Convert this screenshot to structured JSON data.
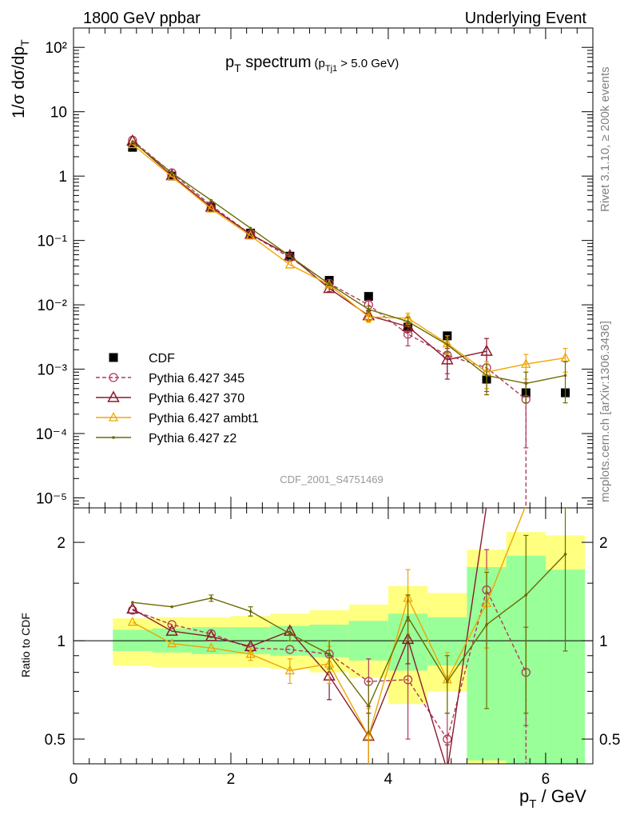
{
  "header": {
    "left": "1800 GeV ppbar",
    "right": "Underlying Event"
  },
  "side_labels": {
    "version": "Rivet 3.1.10, ≥ 200k events",
    "source": "mcplots.cern.ch [arXiv:1306.3436]"
  },
  "chart_data": [
    {
      "type": "scatter",
      "title": "p_T spectrum (p_Tj1 > 5.0 GeV)",
      "title_parts": {
        "main": "p",
        "main_sub": "T",
        "main_rest": " spectrum",
        "cut_open": "(p",
        "cut_sub": "Tj1",
        "cut_rest": " > 5.0 GeV)"
      },
      "watermark": "CDF_2001_S4751469",
      "ylabel": "1/σ dσ/dp_T",
      "yscale": "log",
      "ylim": [
        7e-06,
        200
      ],
      "xlim": [
        0,
        6.6
      ],
      "ytick_labels": [
        "10⁻⁵",
        "10⁻⁴",
        "10⁻³",
        "10⁻²",
        "10⁻¹",
        "1",
        "10",
        "10²"
      ],
      "legend_position": "lower-left",
      "series": [
        {
          "name": "CDF",
          "color": "#000000",
          "marker": "filled-square",
          "x": [
            0.75,
            1.25,
            1.75,
            2.25,
            2.75,
            3.25,
            3.75,
            4.25,
            4.75,
            5.25,
            5.75,
            6.25
          ],
          "y": [
            2.8,
            1.0,
            0.33,
            0.13,
            0.057,
            0.024,
            0.0135,
            0.0045,
            0.0033,
            0.0007,
            0.00043,
            0.00043
          ]
        },
        {
          "name": "Pythia 6.427 345",
          "color": "#b03a5b",
          "marker": "open-circle",
          "dashed": true,
          "x": [
            0.75,
            1.25,
            1.75,
            2.25,
            2.75,
            3.25,
            3.75,
            4.25,
            4.75,
            5.25,
            5.75
          ],
          "y": [
            3.6,
            1.12,
            0.35,
            0.125,
            0.054,
            0.0215,
            0.01,
            0.0035,
            0.00165,
            0.00105,
            0.00034
          ],
          "yerr": [
            0,
            0,
            0,
            0,
            0,
            0,
            0.0018,
            0.0012,
            0.0008,
            0.0006,
            0.00028
          ]
        },
        {
          "name": "Pythia 6.427 370",
          "color": "#8b1a2e",
          "marker": "open-triangle",
          "x": [
            0.75,
            1.25,
            1.75,
            2.25,
            2.75,
            3.25,
            3.75,
            4.25,
            4.75,
            5.25
          ],
          "y": [
            3.5,
            1.02,
            0.33,
            0.125,
            0.058,
            0.018,
            0.0068,
            0.0046,
            0.0014,
            0.0019
          ],
          "yerr": [
            0,
            0,
            0,
            0,
            0,
            0.002,
            0.0012,
            0.0009,
            0.0007,
            0.0011
          ]
        },
        {
          "name": "Pythia 6.427 ambt1",
          "color": "#f0a500",
          "marker": "open-triangle-small",
          "x": [
            0.75,
            1.25,
            1.75,
            2.25,
            2.75,
            3.25,
            3.75,
            4.25,
            4.75,
            5.25,
            5.75,
            6.25
          ],
          "y": [
            3.1,
            0.98,
            0.31,
            0.118,
            0.042,
            0.0205,
            0.0065,
            0.0062,
            0.0025,
            0.0009,
            0.0012,
            0.0015
          ],
          "yerr": [
            0,
            0,
            0,
            0,
            0,
            0.0015,
            0.0012,
            0.0012,
            0.0008,
            0.0004,
            0.0005,
            0.0006
          ]
        },
        {
          "name": "Pythia 6.427 z2",
          "color": "#6b6b00",
          "marker": "dot",
          "x": [
            0.75,
            1.25,
            1.75,
            2.25,
            2.75,
            3.25,
            3.75,
            4.25,
            4.75,
            5.25,
            5.75,
            6.25
          ],
          "y": [
            3.4,
            1.12,
            0.42,
            0.155,
            0.057,
            0.021,
            0.0085,
            0.0055,
            0.0024,
            0.0008,
            0.0006,
            0.0008
          ],
          "yerr": [
            0,
            0,
            0,
            0,
            0,
            0.0012,
            0.001,
            0.0009,
            0.0006,
            0.0004,
            0.0003,
            0.0005
          ]
        }
      ]
    },
    {
      "type": "scatter",
      "ylabel": "Ratio to CDF",
      "xlabel": "p_T / GeV",
      "xlabel_parts": {
        "main": "p",
        "sub": "T",
        "rest": " / GeV"
      },
      "yscale": "log",
      "ylim": [
        0.42,
        2.55
      ],
      "xlim": [
        0,
        6.6
      ],
      "xticks": [
        0,
        2,
        4,
        6
      ],
      "yticks": [
        0.5,
        1,
        2
      ],
      "reference_line": 1,
      "bands": [
        {
          "x0": 0.5,
          "x1": 1.0,
          "inner": [
            0.93,
            1.08
          ],
          "outer": [
            0.84,
            1.17
          ]
        },
        {
          "x0": 1.0,
          "x1": 1.5,
          "inner": [
            0.92,
            1.09
          ],
          "outer": [
            0.83,
            1.18
          ]
        },
        {
          "x0": 1.5,
          "x1": 2.0,
          "inner": [
            0.91,
            1.1
          ],
          "outer": [
            0.83,
            1.18
          ]
        },
        {
          "x0": 2.0,
          "x1": 2.5,
          "inner": [
            0.91,
            1.1
          ],
          "outer": [
            0.83,
            1.19
          ]
        },
        {
          "x0": 2.5,
          "x1": 3.0,
          "inner": [
            0.9,
            1.11
          ],
          "outer": [
            0.82,
            1.21
          ]
        },
        {
          "x0": 3.0,
          "x1": 3.5,
          "inner": [
            0.89,
            1.12
          ],
          "outer": [
            0.8,
            1.24
          ]
        },
        {
          "x0": 3.5,
          "x1": 4.0,
          "inner": [
            0.87,
            1.15
          ],
          "outer": [
            0.77,
            1.29
          ]
        },
        {
          "x0": 4.0,
          "x1": 4.5,
          "inner": [
            0.81,
            1.21
          ],
          "outer": [
            0.64,
            1.47
          ]
        },
        {
          "x0": 4.5,
          "x1": 5.0,
          "inner": [
            0.84,
            1.18
          ],
          "outer": [
            0.7,
            1.4
          ]
        },
        {
          "x0": 5.0,
          "x1": 5.5,
          "inner": [
            0.43,
            1.68
          ],
          "outer": [
            0.34,
            1.9
          ]
        },
        {
          "x0": 5.5,
          "x1": 6.0,
          "inner": [
            0.34,
            1.82
          ],
          "outer": [
            0.34,
            2.15
          ]
        },
        {
          "x0": 6.0,
          "x1": 6.5,
          "inner": [
            0.35,
            1.65
          ],
          "outer": [
            0.35,
            2.1
          ]
        }
      ],
      "series": [
        {
          "name": "Pythia 6.427 345",
          "x": [
            0.75,
            1.25,
            1.75,
            2.25,
            2.75,
            3.25,
            3.75,
            4.25,
            4.75,
            5.25,
            5.75
          ],
          "y": [
            1.24,
            1.12,
            1.05,
            0.95,
            0.94,
            0.91,
            0.75,
            0.76,
            0.5,
            1.43,
            0.8
          ],
          "ylo": [
            1.24,
            1.12,
            1.05,
            0.95,
            0.94,
            0.91,
            0.63,
            0.5,
            0.42,
            0.95,
            0.55
          ],
          "yhi": [
            1.24,
            1.12,
            1.05,
            0.95,
            0.94,
            0.91,
            0.88,
            1.02,
            0.6,
            1.9,
            1.1
          ]
        },
        {
          "name": "Pythia 6.427 370",
          "x": [
            0.75,
            1.25,
            1.75,
            2.25,
            2.75,
            3.25,
            3.75,
            4.25,
            4.75,
            5.25
          ],
          "y": [
            1.25,
            1.07,
            1.03,
            0.96,
            1.07,
            0.78,
            0.51,
            1.01,
            0.4,
            2.6
          ],
          "ylo": [
            1.25,
            1.07,
            1.03,
            0.96,
            1.07,
            0.66,
            0.42,
            0.85,
            0.33,
            2.6
          ],
          "yhi": [
            1.25,
            1.07,
            1.03,
            0.96,
            1.07,
            0.9,
            0.6,
            1.15,
            0.48,
            2.6
          ]
        },
        {
          "name": "Pythia 6.427 ambt1",
          "x": [
            0.75,
            1.25,
            1.75,
            2.25,
            2.75,
            3.25,
            3.75,
            4.25,
            4.75,
            5.25,
            5.75
          ],
          "y": [
            1.14,
            0.98,
            0.95,
            0.91,
            0.81,
            0.85,
            0.51,
            1.35,
            0.76,
            1.3,
            2.6
          ],
          "ylo": [
            1.14,
            0.98,
            0.95,
            0.87,
            0.74,
            0.74,
            0.4,
            1.05,
            0.6,
            0.95,
            2.6
          ],
          "yhi": [
            1.14,
            0.98,
            0.95,
            0.95,
            0.88,
            0.96,
            0.62,
            1.65,
            0.92,
            1.65,
            2.6
          ]
        },
        {
          "name": "Pythia 6.427 z2",
          "x": [
            0.75,
            1.25,
            1.75,
            2.25,
            2.75,
            3.25,
            3.75,
            4.25,
            4.75,
            5.25,
            5.75,
            6.25
          ],
          "y": [
            1.31,
            1.27,
            1.35,
            1.23,
            1.05,
            0.91,
            0.63,
            1.18,
            0.75,
            1.12,
            1.38,
            1.84
          ],
          "ylo": [
            1.31,
            1.27,
            1.32,
            1.19,
            1.0,
            0.82,
            0.52,
            1.0,
            0.6,
            0.62,
            0.6,
            0.93
          ],
          "yhi": [
            1.31,
            1.27,
            1.38,
            1.27,
            1.1,
            1.0,
            0.75,
            1.38,
            0.9,
            1.62,
            2.1,
            2.55
          ]
        }
      ]
    }
  ]
}
